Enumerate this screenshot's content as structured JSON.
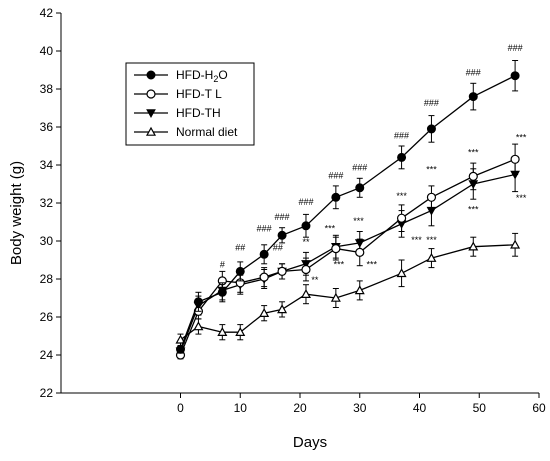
{
  "chart_data": {
    "type": "line",
    "xlabel": "Days",
    "ylabel": "Body weight (g)",
    "xlim": [
      -20,
      60
    ],
    "ylim": [
      22,
      42
    ],
    "xticks": [
      0,
      10,
      20,
      30,
      40,
      50,
      60
    ],
    "yticks": [
      22,
      24,
      26,
      28,
      30,
      32,
      34,
      36,
      38,
      40,
      42
    ],
    "xtick_labels": [
      "0",
      "10",
      "20",
      "30",
      "40",
      "50",
      "60"
    ],
    "ytick_labels": [
      "22",
      "24",
      "26",
      "28",
      "30",
      "32",
      "34",
      "36",
      "38",
      "40",
      "42"
    ],
    "grid": false,
    "legend_position": "top-left",
    "legend": [
      {
        "label_main": "HFD-H",
        "label_sub": "2",
        "label_end": "O",
        "marker": "circle-filled"
      },
      {
        "label_main": "HFD-T L",
        "label_sub": "",
        "label_end": "",
        "marker": "circle-open"
      },
      {
        "label_main": "HFD-TH",
        "label_sub": "",
        "label_end": "",
        "marker": "triangle-down-filled"
      },
      {
        "label_main": "Normal diet",
        "label_sub": "",
        "label_end": "",
        "marker": "triangle-up-open"
      }
    ],
    "x": [
      0,
      3,
      7,
      10,
      14,
      17,
      21,
      26,
      30,
      37,
      42,
      49,
      56
    ],
    "series": [
      {
        "name": "HFD-H2O",
        "marker": "circle-filled",
        "values": [
          24.3,
          26.8,
          27.3,
          28.4,
          29.3,
          30.3,
          30.8,
          32.3,
          32.8,
          34.4,
          35.9,
          37.6,
          38.7
        ],
        "errors": [
          0.2,
          0.5,
          0.5,
          0.5,
          0.5,
          0.4,
          0.6,
          0.6,
          0.5,
          0.6,
          0.7,
          0.7,
          0.8
        ]
      },
      {
        "name": "HFD-T L",
        "marker": "circle-open",
        "values": [
          24.0,
          26.3,
          27.9,
          27.8,
          28.1,
          28.4,
          28.5,
          29.6,
          29.4,
          31.2,
          32.3,
          33.4,
          34.3
        ],
        "errors": [
          0.2,
          0.4,
          0.5,
          0.5,
          0.5,
          0.4,
          0.6,
          0.6,
          0.7,
          0.7,
          0.6,
          0.7,
          0.8
        ]
      },
      {
        "name": "HFD-TH",
        "marker": "triangle-down-filled",
        "values": [
          24.2,
          26.6,
          27.4,
          27.7,
          28.0,
          28.4,
          28.8,
          29.7,
          29.9,
          30.9,
          31.6,
          33.0,
          33.5
        ],
        "errors": [
          0.2,
          0.5,
          0.5,
          0.5,
          0.5,
          0.4,
          0.6,
          0.6,
          0.6,
          0.7,
          0.8,
          0.8,
          0.9
        ]
      },
      {
        "name": "Normal diet",
        "marker": "triangle-up-open",
        "values": [
          24.8,
          25.5,
          25.2,
          25.2,
          26.2,
          26.4,
          27.2,
          27.0,
          27.4,
          28.3,
          29.1,
          29.7,
          29.8
        ],
        "errors": [
          0.3,
          0.4,
          0.4,
          0.4,
          0.4,
          0.4,
          0.5,
          0.5,
          0.5,
          0.7,
          0.5,
          0.5,
          0.6
        ]
      }
    ],
    "annotations": [
      {
        "text": "#",
        "x": 7,
        "y": 28.6
      },
      {
        "text": "##",
        "x": 10,
        "y": 29.5
      },
      {
        "text": "###",
        "x": 14,
        "y": 30.5
      },
      {
        "text": "###",
        "x": 17,
        "y": 31.1
      },
      {
        "text": "###",
        "x": 21,
        "y": 31.9
      },
      {
        "text": "###",
        "x": 26,
        "y": 33.3
      },
      {
        "text": "###",
        "x": 30,
        "y": 33.7
      },
      {
        "text": "###",
        "x": 37,
        "y": 35.4
      },
      {
        "text": "###",
        "x": 42,
        "y": 37.1
      },
      {
        "text": "###",
        "x": 49,
        "y": 38.7
      },
      {
        "text": "###",
        "x": 56,
        "y": 40.0
      },
      {
        "text": "##",
        "x": 16.3,
        "y": 29.5
      },
      {
        "text": "**",
        "x": 21,
        "y": 29.8
      },
      {
        "text": "**",
        "x": 22.5,
        "y": 27.8
      },
      {
        "text": "***",
        "x": 25,
        "y": 30.5
      },
      {
        "text": "***",
        "x": 26.5,
        "y": 28.6
      },
      {
        "text": "***",
        "x": 29.8,
        "y": 30.9
      },
      {
        "text": "***",
        "x": 32,
        "y": 28.6
      },
      {
        "text": "***",
        "x": 37,
        "y": 32.2
      },
      {
        "text": "***",
        "x": 39.5,
        "y": 29.9
      },
      {
        "text": "***",
        "x": 42,
        "y": 33.6
      },
      {
        "text": "***",
        "x": 42,
        "y": 29.9
      },
      {
        "text": "***",
        "x": 49,
        "y": 34.5
      },
      {
        "text": "***",
        "x": 49,
        "y": 31.5
      },
      {
        "text": "***",
        "x": 57,
        "y": 35.3
      },
      {
        "text": "***",
        "x": 57,
        "y": 32.1
      }
    ]
  }
}
